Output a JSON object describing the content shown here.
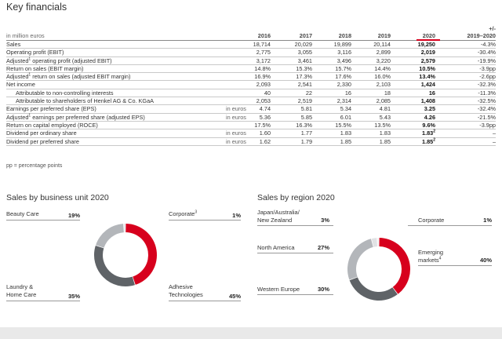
{
  "title": "Key financials",
  "table": {
    "unit_label": "in million euros",
    "plus_minus": "+/-",
    "years": [
      "2016",
      "2017",
      "2018",
      "2019",
      "2020",
      "2019–2020"
    ],
    "rows": [
      {
        "label": "Sales",
        "unit": "",
        "indent": false,
        "values": [
          "18,714",
          "20,029",
          "19,899",
          "20,114",
          "19,250",
          "-4.3%"
        ]
      },
      {
        "label": "Operating profit (EBIT)",
        "unit": "",
        "indent": false,
        "values": [
          "2,775",
          "3,055",
          "3,116",
          "2,899",
          "2,019",
          "-30.4%"
        ]
      },
      {
        "label": "Adjusted",
        "sup": "1",
        "label_rest": " operating profit (adjusted EBIT)",
        "unit": "",
        "indent": false,
        "values": [
          "3,172",
          "3,461",
          "3,496",
          "3,220",
          "2,579",
          "-19.9%"
        ]
      },
      {
        "label": "Return on sales (EBIT margin)",
        "unit": "",
        "indent": false,
        "values": [
          "14.8%",
          "15.3%",
          "15.7%",
          "14.4%",
          "10.5%",
          "-3.9pp"
        ]
      },
      {
        "label": "Adjusted",
        "sup": "1",
        "label_rest": " return on sales (adjusted EBIT margin)",
        "unit": "",
        "indent": false,
        "values": [
          "16.9%",
          "17.3%",
          "17.6%",
          "16.0%",
          "13.4%",
          "-2.6pp"
        ]
      },
      {
        "label": "Net income",
        "unit": "",
        "indent": false,
        "values": [
          "2,093",
          "2,541",
          "2,330",
          "2,103",
          "1,424",
          "-32.3%"
        ]
      },
      {
        "label": "Attributable to non-controlling interests",
        "unit": "",
        "indent": true,
        "values": [
          "40",
          "22",
          "16",
          "18",
          "16",
          "-11.3%"
        ]
      },
      {
        "label": "Attributable to shareholders of Henkel AG & Co. KGaA",
        "unit": "",
        "indent": true,
        "values": [
          "2,053",
          "2,519",
          "2,314",
          "2,085",
          "1,408",
          "-32.5%"
        ]
      },
      {
        "label": "Earnings per preferred share (EPS)",
        "unit": "in euros",
        "indent": false,
        "values": [
          "4.74",
          "5.81",
          "5.34",
          "4.81",
          "3.25",
          "-32.4%"
        ]
      },
      {
        "label": "Adjusted",
        "sup": "1",
        "label_rest": " earnings per preferred share (adjusted EPS)",
        "unit": "in euros",
        "indent": false,
        "values": [
          "5.36",
          "5.85",
          "6.01",
          "5.43",
          "4.26",
          "-21.5%"
        ]
      },
      {
        "label": "Return on capital employed (ROCE)",
        "unit": "",
        "indent": false,
        "values": [
          "17.5%",
          "16.3%",
          "15.5%",
          "13.5%",
          "9.6%",
          "-3.9pp"
        ]
      },
      {
        "label": "Dividend per ordinary share",
        "unit": "in euros",
        "indent": false,
        "values": [
          "1.60",
          "1.77",
          "1.83",
          "1.83",
          "1.83",
          "–"
        ],
        "v4sup": "2"
      },
      {
        "label": "Dividend per preferred share",
        "unit": "in euros",
        "indent": false,
        "values": [
          "1.62",
          "1.79",
          "1.85",
          "1.85",
          "1.85",
          "–"
        ],
        "v4sup": "2"
      }
    ],
    "footnote": "pp = percentage points"
  },
  "bu": {
    "title": "Sales by business unit 2020",
    "segments": [
      {
        "name": "Beauty Care",
        "pct": "19%",
        "value": 19,
        "color": "#b3b6ba"
      },
      {
        "name": "Corporate",
        "sup": "3",
        "pct": "1%",
        "value": 1,
        "color": "#e6e7e8"
      },
      {
        "name": "Adhesive Technologies",
        "name_l1": "Adhesive",
        "name_l2": "Technologies",
        "pct": "45%",
        "value": 45,
        "color": "#d7001d"
      },
      {
        "name": "Laundry & Home Care",
        "name_l1": "Laundry &",
        "name_l2": "Home Care",
        "pct": "35%",
        "value": 35,
        "color": "#5f6367"
      }
    ]
  },
  "region": {
    "title": "Sales by region 2020",
    "segments": [
      {
        "name": "Japan/Australia/New Zealand",
        "name_l1": "Japan/Australia/",
        "name_l2": "New Zealand",
        "pct": "3%",
        "value": 3,
        "color": "#e1e2e4"
      },
      {
        "name": "Corporate",
        "pct": "1%",
        "value": 1,
        "color": "#f2f2f2"
      },
      {
        "name": "Emerging markets",
        "name_l1": "Emerging",
        "name_l2": "markets",
        "sup": "4",
        "pct": "40%",
        "value": 40,
        "color": "#d7001d"
      },
      {
        "name": "Western Europe",
        "pct": "30%",
        "value": 30,
        "color": "#5f6367"
      },
      {
        "name": "North America",
        "pct": "27%",
        "value": 27,
        "color": "#b3b6ba"
      }
    ]
  }
}
